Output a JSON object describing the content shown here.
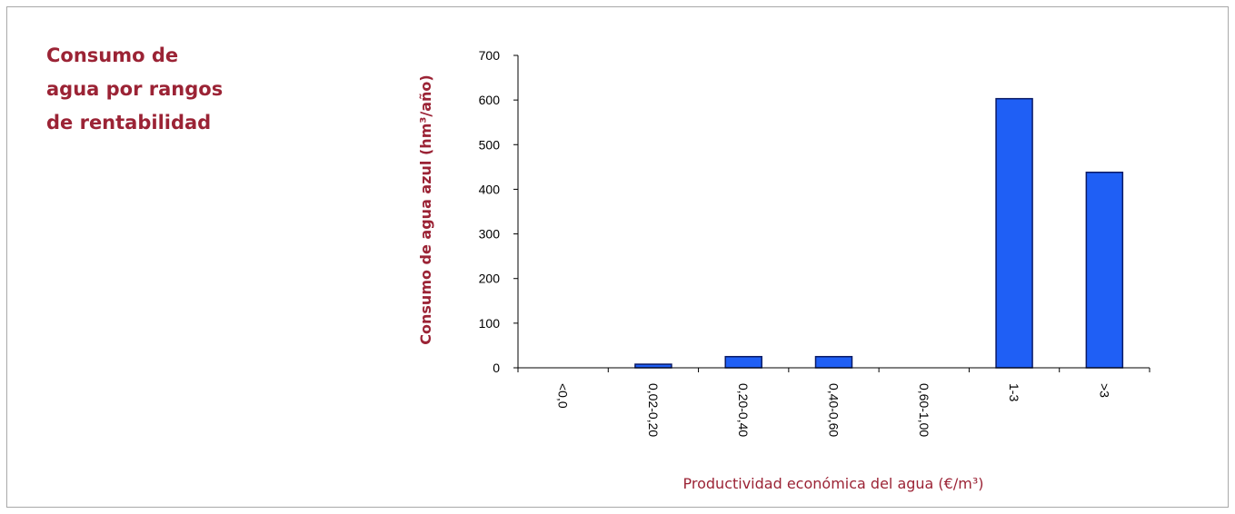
{
  "side_title": [
    "Consumo de",
    "agua por rangos",
    "de rentabilidad"
  ],
  "chart_data": {
    "type": "bar",
    "categories": [
      "<0,0",
      "0,02-0,20",
      "0,20-0,40",
      "0,40-0,60",
      "0,60-1,00",
      "1-3",
      ">3"
    ],
    "values": [
      0,
      8,
      25,
      25,
      0,
      603,
      438
    ],
    "xlabel": "Productividad económica del agua (€/m³)",
    "ylabel": "Consumo de agua azul (hm³/año)",
    "ylim": [
      0,
      700
    ],
    "yticks": [
      0,
      100,
      200,
      300,
      400,
      500,
      600,
      700
    ],
    "grid": false,
    "bar_color": "#1f5ff5",
    "bar_edge_color": "#0a1a66",
    "title_color": "#9b2335"
  }
}
